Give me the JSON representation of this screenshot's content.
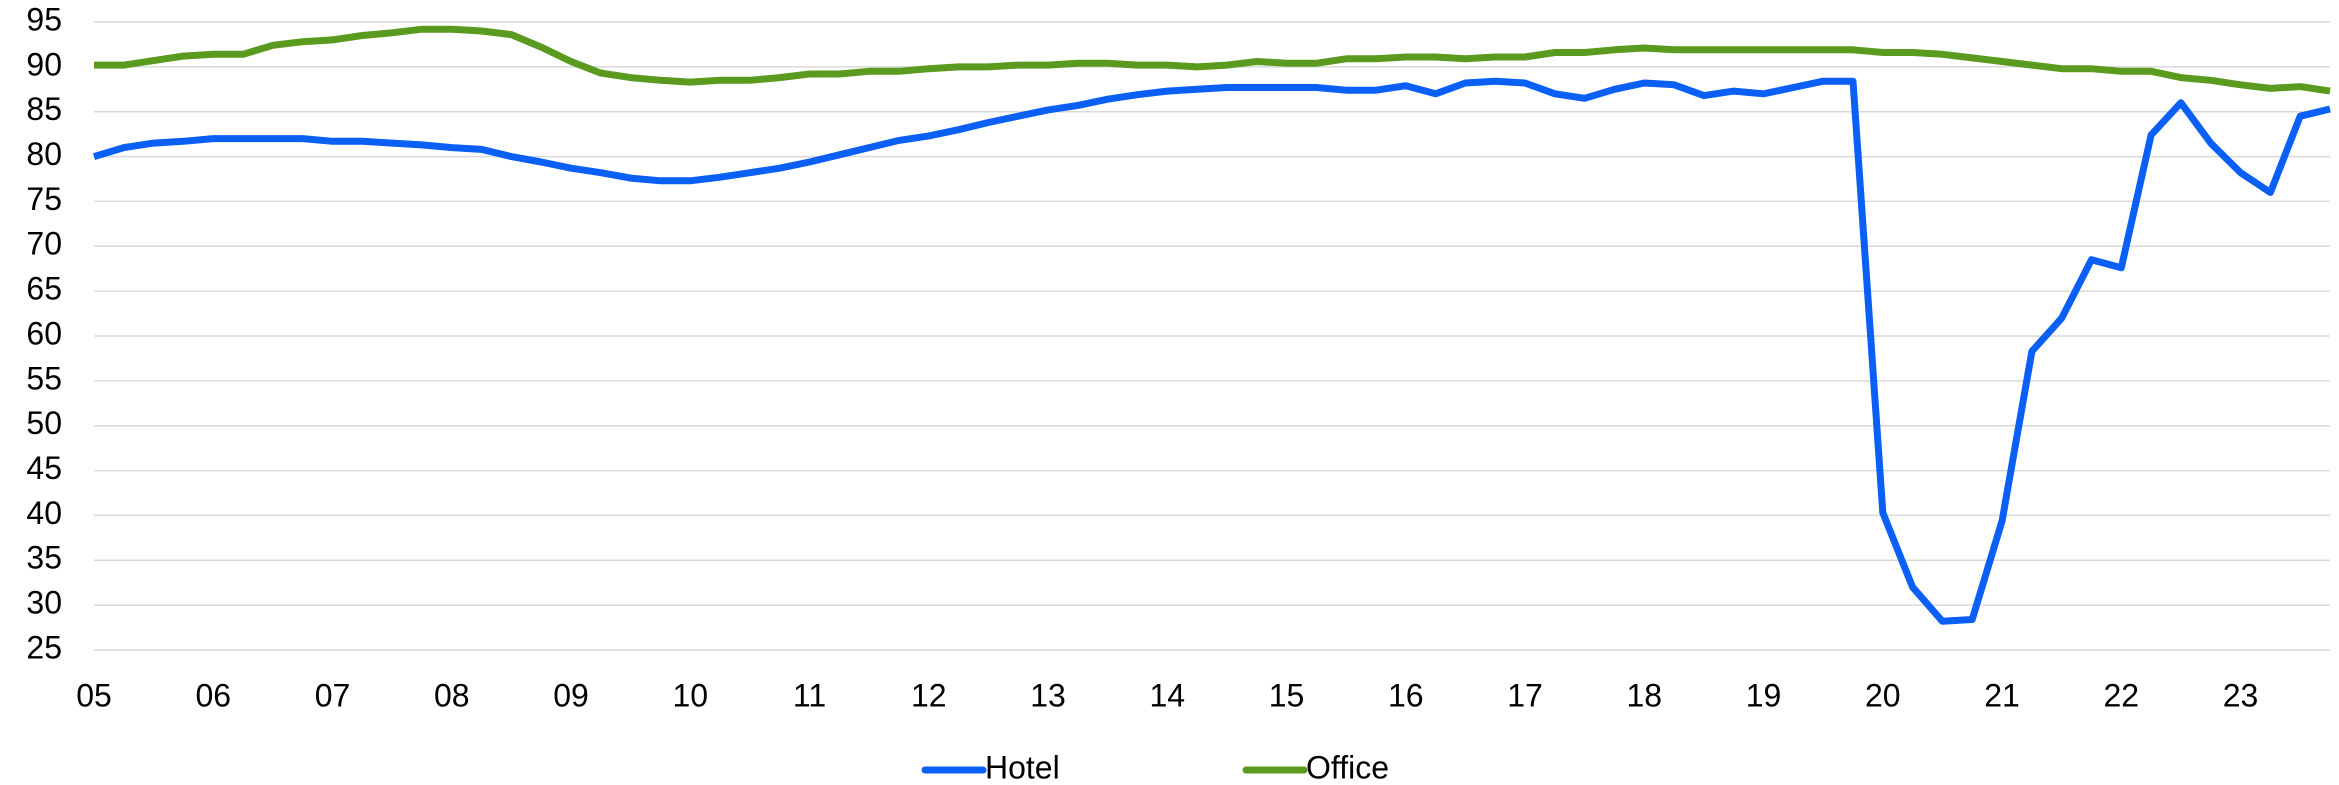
{
  "chart_data": {
    "type": "line",
    "categories": [
      "05",
      null,
      null,
      null,
      "06",
      null,
      null,
      null,
      "07",
      null,
      null,
      null,
      "08",
      null,
      null,
      null,
      "09",
      null,
      null,
      null,
      "10",
      null,
      null,
      null,
      "11",
      null,
      null,
      null,
      "12",
      null,
      null,
      null,
      "13",
      null,
      null,
      null,
      "14",
      null,
      null,
      null,
      "15",
      null,
      null,
      null,
      "16",
      null,
      null,
      null,
      "17",
      null,
      null,
      null,
      "18",
      null,
      null,
      null,
      "19",
      null,
      null,
      null,
      "20",
      null,
      null,
      null,
      "21",
      null,
      null,
      null,
      "22",
      null,
      null,
      null,
      "23",
      null,
      null,
      null
    ],
    "series": [
      {
        "name": "Hotel",
        "color": "#0a5ff5",
        "values": [
          80,
          81,
          81.5,
          81.7,
          82,
          82,
          82,
          82,
          81.7,
          81.7,
          81.5,
          81.3,
          81,
          80.8,
          80,
          79.4,
          78.7,
          78.2,
          77.6,
          77.3,
          77.3,
          77.7,
          78.2,
          78.7,
          79.4,
          80.2,
          81,
          81.8,
          82.3,
          83,
          83.8,
          84.5,
          85.2,
          85.7,
          86.4,
          86.9,
          87.3,
          87.5,
          87.7,
          87.7,
          87.7,
          87.7,
          87.4,
          87.4,
          87.9,
          87,
          88.2,
          88.4,
          88.2,
          87,
          86.5,
          87.5,
          88.2,
          88,
          86.8,
          87.3,
          87,
          87.7,
          88.4,
          88.4,
          40.3,
          32,
          28.2,
          28.4,
          39.4,
          58.3,
          62,
          68.5,
          67.6,
          82.4,
          86,
          81.5,
          78.2,
          76,
          84.5,
          85.3
        ]
      },
      {
        "name": "Office",
        "color": "#5a9a1e",
        "values": [
          90.2,
          90.2,
          90.7,
          91.2,
          91.4,
          91.4,
          92.4,
          92.8,
          93,
          93.5,
          93.8,
          94.2,
          94.2,
          94,
          93.6,
          92.2,
          90.6,
          89.3,
          88.8,
          88.5,
          88.3,
          88.5,
          88.5,
          88.8,
          89.2,
          89.2,
          89.5,
          89.5,
          89.8,
          90,
          90,
          90.2,
          90.2,
          90.4,
          90.4,
          90.2,
          90.2,
          90,
          90.2,
          90.6,
          90.4,
          90.4,
          90.9,
          90.9,
          91.1,
          91.1,
          90.9,
          91.1,
          91.1,
          91.6,
          91.6,
          91.9,
          92.1,
          91.9,
          91.9,
          91.9,
          91.9,
          91.9,
          91.9,
          91.9,
          91.6,
          91.6,
          91.4,
          91,
          90.6,
          90.2,
          89.8,
          89.8,
          89.5,
          89.5,
          88.8,
          88.5,
          88,
          87.6,
          87.8,
          87.3
        ]
      }
    ],
    "ylim": [
      25,
      95
    ],
    "yticks": [
      25,
      30,
      35,
      40,
      45,
      50,
      55,
      60,
      65,
      70,
      75,
      80,
      85,
      90,
      95
    ],
    "grid": true
  }
}
